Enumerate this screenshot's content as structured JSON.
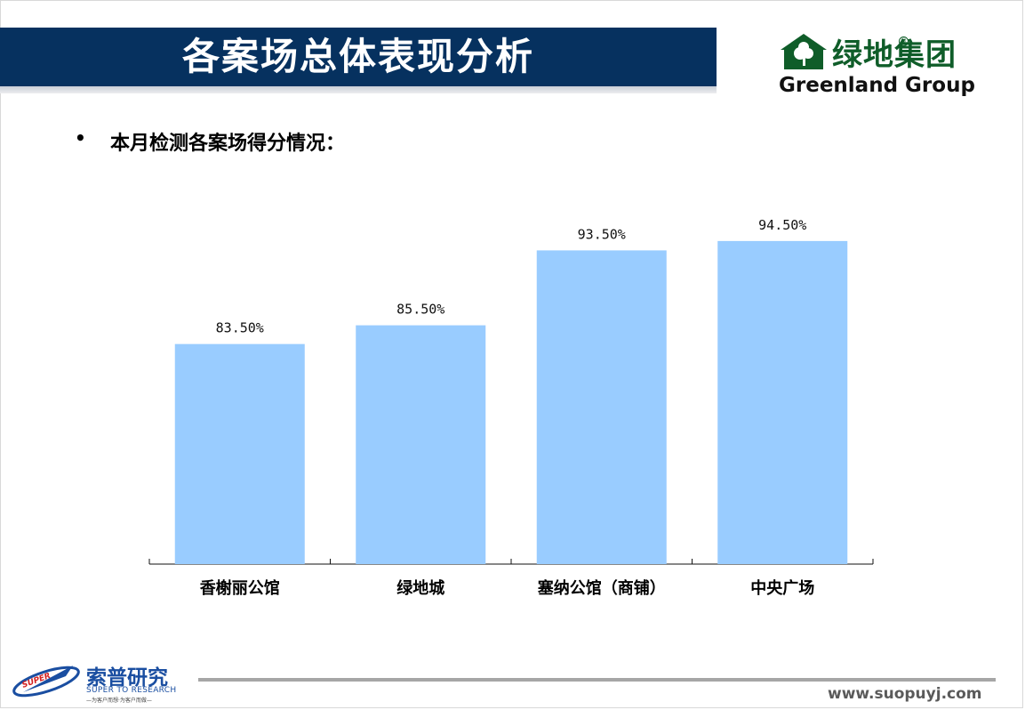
{
  "header": {
    "title": "各案场总体表现分析"
  },
  "brand": {
    "name_cn": "绿地集团",
    "name_en": "Greenland Group",
    "registered": "®"
  },
  "content": {
    "bullet": "•",
    "bullet_text": "本月检测各案场得分情况："
  },
  "chart_data": {
    "type": "bar",
    "title": "",
    "xlabel": "",
    "ylabel": "",
    "categories": [
      "香榭丽公馆",
      "绿地城",
      "塞纳公馆（商铺）",
      "中央广场"
    ],
    "values": [
      83.5,
      85.5,
      93.5,
      94.5
    ],
    "data_labels": [
      "83.50%",
      "85.50%",
      "93.50%",
      "94.50%"
    ],
    "ylim": [
      0,
      100
    ],
    "grid": false,
    "legend": "none",
    "bar_color": "#99ccff"
  },
  "footer": {
    "logo_badge": "SUPER",
    "company_cn": "索普研究",
    "company_en": "SUPER TO RESEARCH",
    "company_sub": "—为客户而想·为客户而做—",
    "url": "www.suopuyj.com"
  },
  "colors": {
    "title_band": "#06315f",
    "brand_green": "#0f5d29",
    "footer_blue": "#1a4ea1",
    "footer_line": "#a6a6a6"
  }
}
